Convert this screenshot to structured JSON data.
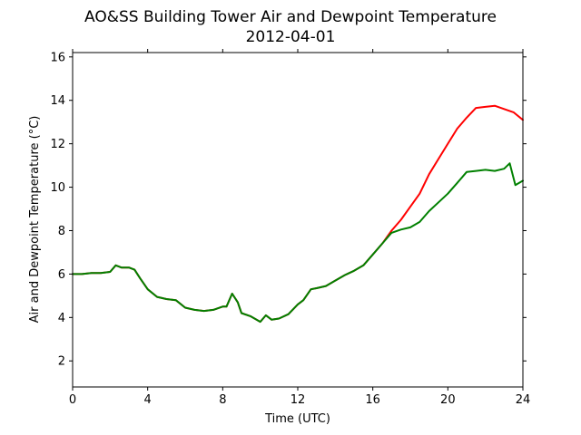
{
  "chart_data": {
    "type": "line",
    "title": "AO&SS Building Tower Air and Dewpoint Temperature",
    "subtitle": "2012-04-01",
    "xlabel": "Time (UTC)",
    "ylabel": "Air and Dewpoint Temperature (°C)",
    "xlim": [
      0,
      24
    ],
    "ylim": [
      0.8,
      16.2
    ],
    "x_ticks": [
      0,
      4,
      8,
      12,
      16,
      20,
      24
    ],
    "x_tick_labels": [
      "0",
      "4",
      "8",
      "12",
      "16",
      "20",
      "24"
    ],
    "y_ticks": [
      2,
      4,
      6,
      8,
      10,
      12,
      14,
      16
    ],
    "y_tick_labels": [
      "2",
      "4",
      "6",
      "8",
      "10",
      "12",
      "14",
      "16"
    ],
    "grid": false,
    "legend": "none",
    "series": [
      {
        "color": "#ff0000",
        "x": [
          0,
          0.5,
          1,
          1.5,
          2,
          2.3,
          2.6,
          3,
          3.3,
          3.6,
          4,
          4.5,
          5,
          5.5,
          6,
          6.5,
          7,
          7.5,
          8,
          8.2,
          8.5,
          8.8,
          9,
          9.5,
          10,
          10.3,
          10.6,
          11,
          11.5,
          12,
          12.3,
          12.7,
          13,
          13.5,
          14,
          14.5,
          15,
          15.5,
          16,
          16.5,
          17,
          17.5,
          18,
          18.5,
          19,
          19.5,
          20,
          20.5,
          21,
          21.5,
          22,
          22.5,
          23,
          23.5,
          24
        ],
        "y": [
          6.0,
          6.0,
          6.05,
          6.05,
          6.1,
          6.4,
          6.3,
          6.3,
          6.2,
          5.8,
          5.3,
          4.95,
          4.85,
          4.8,
          4.45,
          4.35,
          4.3,
          4.35,
          4.5,
          4.5,
          5.1,
          4.7,
          4.2,
          4.05,
          3.8,
          4.1,
          3.9,
          3.95,
          4.15,
          4.6,
          4.8,
          5.3,
          5.35,
          5.45,
          5.7,
          5.95,
          6.15,
          6.4,
          6.9,
          7.4,
          8.0,
          8.5,
          9.1,
          9.7,
          10.6,
          11.3,
          12.0,
          12.7,
          13.2,
          13.65,
          13.7,
          13.75,
          13.6,
          13.45,
          13.1
        ]
      },
      {
        "color": "#008000",
        "x": [
          0,
          0.5,
          1,
          1.5,
          2,
          2.3,
          2.6,
          3,
          3.3,
          3.6,
          4,
          4.5,
          5,
          5.5,
          6,
          6.5,
          7,
          7.5,
          8,
          8.2,
          8.5,
          8.8,
          9,
          9.5,
          10,
          10.3,
          10.6,
          11,
          11.5,
          12,
          12.3,
          12.7,
          13,
          13.5,
          14,
          14.5,
          15,
          15.5,
          16,
          16.5,
          17,
          17.5,
          18,
          18.5,
          19,
          19.5,
          20,
          20.5,
          21,
          21.5,
          22,
          22.5,
          23,
          23.3,
          23.6,
          24
        ],
        "y": [
          6.0,
          6.0,
          6.05,
          6.05,
          6.1,
          6.4,
          6.3,
          6.3,
          6.2,
          5.8,
          5.3,
          4.95,
          4.85,
          4.8,
          4.45,
          4.35,
          4.3,
          4.35,
          4.5,
          4.5,
          5.1,
          4.7,
          4.2,
          4.05,
          3.8,
          4.1,
          3.9,
          3.95,
          4.15,
          4.6,
          4.8,
          5.3,
          5.35,
          5.45,
          5.7,
          5.95,
          6.15,
          6.4,
          6.9,
          7.4,
          7.9,
          8.05,
          8.15,
          8.4,
          8.9,
          9.3,
          9.7,
          10.2,
          10.7,
          10.75,
          10.8,
          10.75,
          10.85,
          11.1,
          10.1,
          10.3
        ]
      }
    ]
  }
}
